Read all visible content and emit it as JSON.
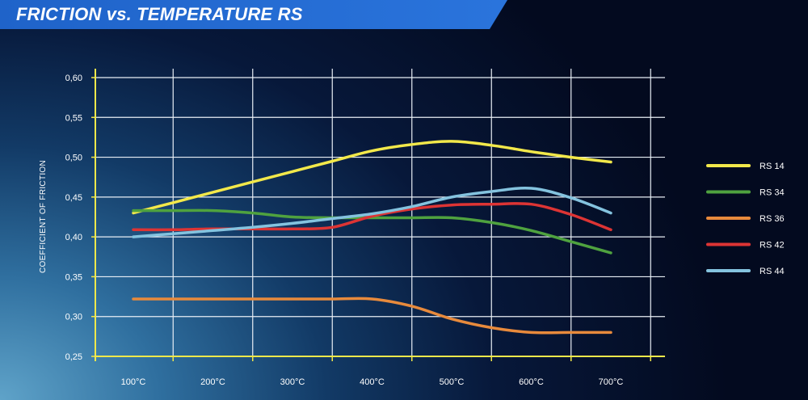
{
  "chart_data": {
    "type": "line",
    "title": "FRICTION vs. TEMPERATURE RS",
    "xlabel": "",
    "ylabel": "COEFFICIENT OF FRICTION",
    "categories": [
      "100°C",
      "200°C",
      "300°C",
      "400°C",
      "500°C",
      "600°C",
      "700°C"
    ],
    "x": [
      100,
      150,
      200,
      250,
      300,
      350,
      400,
      450,
      500,
      550,
      600,
      650,
      700
    ],
    "ylim": [
      0.25,
      0.6
    ],
    "yticks": [
      "0,60",
      "0,55",
      "0,50",
      "0,45",
      "0,40",
      "0,35",
      "0,30",
      "0,25"
    ],
    "ytick_values": [
      0.6,
      0.55,
      0.5,
      0.45,
      0.4,
      0.35,
      0.3,
      0.25
    ],
    "grid": true,
    "legend_position": "right",
    "series": [
      {
        "name": "RS 14",
        "color": "#f2e84a",
        "values": [
          0.43,
          0.443,
          0.456,
          0.469,
          0.482,
          0.495,
          0.508,
          0.516,
          0.52,
          0.515,
          0.507,
          0.5,
          0.494
        ]
      },
      {
        "name": "RS 34",
        "color": "#4fa23f",
        "values": [
          0.433,
          0.433,
          0.433,
          0.43,
          0.425,
          0.424,
          0.424,
          0.424,
          0.424,
          0.418,
          0.408,
          0.394,
          0.38
        ]
      },
      {
        "name": "RS 36",
        "color": "#e88a3c",
        "values": [
          0.322,
          0.322,
          0.322,
          0.322,
          0.322,
          0.322,
          0.322,
          0.313,
          0.297,
          0.286,
          0.28,
          0.28,
          0.28
        ]
      },
      {
        "name": "RS 42",
        "color": "#dd3434",
        "values": [
          0.409,
          0.409,
          0.41,
          0.41,
          0.41,
          0.412,
          0.426,
          0.435,
          0.44,
          0.441,
          0.441,
          0.428,
          0.409
        ]
      },
      {
        "name": "RS 44",
        "color": "#84c3df",
        "values": [
          0.4,
          0.404,
          0.408,
          0.412,
          0.417,
          0.423,
          0.429,
          0.438,
          0.45,
          0.457,
          0.461,
          0.449,
          0.43
        ]
      }
    ]
  }
}
